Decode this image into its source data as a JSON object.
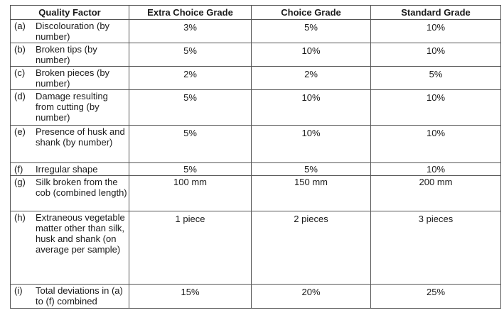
{
  "headers": [
    "Quality Factor",
    "Extra Choice Grade",
    "Choice Grade",
    "Standard Grade"
  ],
  "rows": [
    {
      "letter": "(a)",
      "factor": "Discolouration (by number)",
      "extra": "3%",
      "choice": "5%",
      "standard": "10%"
    },
    {
      "letter": "(b)",
      "factor": "Broken tips (by number)",
      "extra": "5%",
      "choice": "10%",
      "standard": "10%"
    },
    {
      "letter": "(c)",
      "factor": "Broken pieces (by number)",
      "extra": "2%",
      "choice": "2%",
      "standard": "5%"
    },
    {
      "letter": "(d)",
      "factor": "Damage resulting from cutting (by number)",
      "extra": "5%",
      "choice": "10%",
      "standard": "10%"
    },
    {
      "letter": "(e)",
      "factor": "Presence of husk and shank (by number)",
      "extra": "5%",
      "choice": "10%",
      "standard": "10%"
    },
    {
      "letter": "(f)",
      "factor": "Irregular shape",
      "extra": "5%",
      "choice": "5%",
      "standard": "10%"
    },
    {
      "letter": "(g)",
      "factor": "Silk broken from the cob (combined length)",
      "extra": "100 mm",
      "choice": "150 mm",
      "standard": "200 mm"
    },
    {
      "letter": "(h)",
      "factor": "Extraneous vegetable matter other than silk, husk and shank (on average per sample)",
      "extra": "1 piece",
      "choice": "2 pieces",
      "standard": "3 pieces"
    },
    {
      "letter": "(i)",
      "factor": "Total deviations in (a) to (f) combined",
      "extra": "15%",
      "choice": "20%",
      "standard": "25%"
    }
  ]
}
